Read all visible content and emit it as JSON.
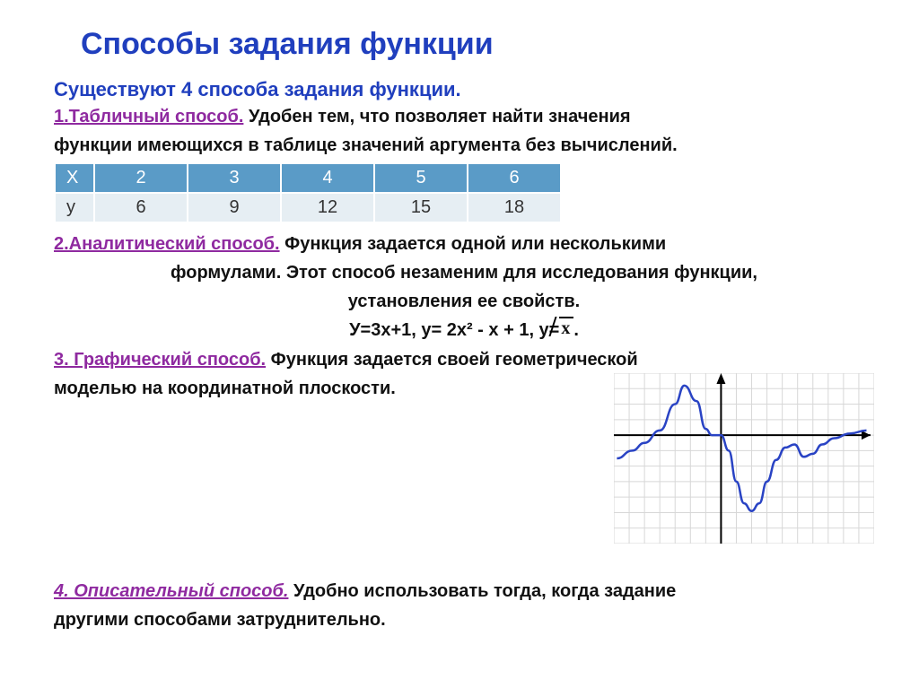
{
  "title": "Способы задания функции",
  "intro": "Существуют 4 способа задания функции.",
  "s1": {
    "head": "1.Табличный способ.",
    "text1": " Удобен тем, что позволяет найти значения",
    "text2": "функции имеющихся в таблице значений аргумента без вычислений.",
    "table": {
      "header_bg": "#5a9bc7",
      "row_bg": "#e6eef3",
      "x_label": "X",
      "y_label": "y",
      "x": [
        "2",
        "3",
        "4",
        "5",
        "6"
      ],
      "y": [
        "6",
        "9",
        "12",
        "15",
        "18"
      ]
    }
  },
  "s2": {
    "head": "2.Аналитический способ.",
    "text1": " Функция задается одной или несколькими",
    "text2": "формулами. Этот способ незаменим для исследования функции,",
    "text3": "установления ее свойств.",
    "formulas_plain": "У=3х+1,   у= 2х² - х + 1,    у=",
    "formulas_radicand": "х",
    "formulas_tail": "."
  },
  "s3": {
    "head": "3. Графический способ.",
    "text1": " Функция задается своей геометрической",
    "text2": "моделью на координатной плоскости.",
    "graph": {
      "grid_color": "#d7d7d7",
      "axis_color": "#000000",
      "curve_color": "#2943c4",
      "cols": 17,
      "rows": 11,
      "origin_col": 7,
      "origin_row": 4,
      "points": [
        [
          0.2,
          5.5
        ],
        [
          1.2,
          5.0
        ],
        [
          2.0,
          4.5
        ],
        [
          3.0,
          3.7
        ],
        [
          4.0,
          2.0
        ],
        [
          4.6,
          0.8
        ],
        [
          5.4,
          1.8
        ],
        [
          6.0,
          3.6
        ],
        [
          6.4,
          4.0
        ],
        [
          7.0,
          4.0
        ],
        [
          7.5,
          5.0
        ],
        [
          8.0,
          7.0
        ],
        [
          8.5,
          8.4
        ],
        [
          9.0,
          8.9
        ],
        [
          9.5,
          8.4
        ],
        [
          10.0,
          7.0
        ],
        [
          10.6,
          5.6
        ],
        [
          11.2,
          4.8
        ],
        [
          11.8,
          4.6
        ],
        [
          12.4,
          5.4
        ],
        [
          13.0,
          5.2
        ],
        [
          13.6,
          4.6
        ],
        [
          14.4,
          4.2
        ],
        [
          15.4,
          3.9
        ],
        [
          16.5,
          3.7
        ]
      ]
    }
  },
  "s4": {
    "head": "4. Описательный способ.",
    "text1": " Удобно использовать тогда, когда задание",
    "text2": "другими способами затруднительно."
  }
}
